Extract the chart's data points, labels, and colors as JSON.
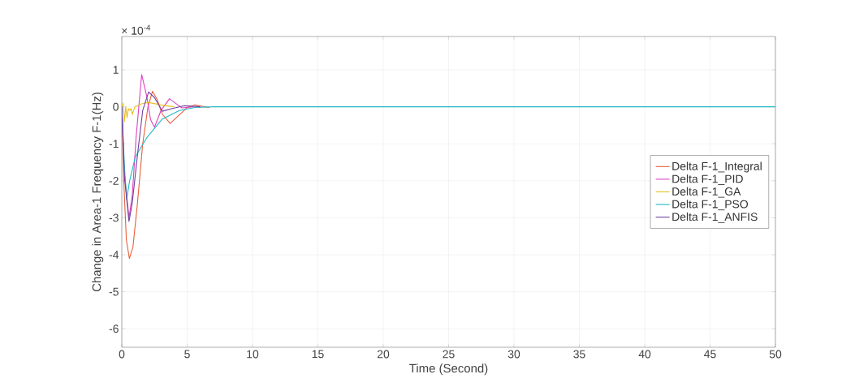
{
  "chart_data": {
    "type": "line",
    "xlabel": "Time (Second)",
    "ylabel": "Change in Area-1 Frequency F-1(Hz)",
    "annotations": [
      "× 10$^{-4}$"
    ],
    "xlim": [
      0,
      50
    ],
    "ylim": [
      -6.5,
      1.9
    ],
    "xticks": [
      0,
      5,
      10,
      15,
      20,
      25,
      30,
      35,
      40,
      45,
      50
    ],
    "yticks": [
      -6,
      -5,
      -4,
      -3,
      -2,
      -1,
      0,
      1
    ],
    "grid": true,
    "legend": "right",
    "marker": "none",
    "line_style": "solid",
    "series": [
      {
        "name": "Delta F-1_Integral",
        "color": "#e8603c",
        "x": [
          0,
          0.15,
          0.35,
          0.58,
          0.85,
          1.2,
          1.6,
          2.0,
          2.35,
          2.7,
          3.1,
          3.7,
          4.3,
          5.0,
          5.6,
          6.7
        ],
        "values": [
          0,
          -2.0,
          -3.6,
          -4.1,
          -3.8,
          -2.6,
          -1.0,
          0,
          0.42,
          0.2,
          -0.2,
          -0.45,
          -0.25,
          -0.02,
          0.05,
          -0.02
        ]
      },
      {
        "name": "Delta F-1_PID",
        "color": "#e040c0",
        "x": [
          0,
          0.2,
          0.55,
          0.8,
          1.1,
          1.52,
          1.9,
          2.2,
          2.5,
          3.0,
          3.65,
          4.1,
          4.6,
          5.5
        ],
        "values": [
          0,
          -1.8,
          -3.0,
          -2.4,
          -0.8,
          0.87,
          0.3,
          -0.35,
          -0.55,
          -0.1,
          0.22,
          0.1,
          -0.03,
          0
        ]
      },
      {
        "name": "Delta F-1_GA",
        "color": "#e8c020",
        "x": [
          0,
          0.1,
          0.2,
          0.3,
          0.4,
          0.5,
          0.6,
          0.7,
          0.8,
          1.0,
          1.5,
          2.0,
          3.0,
          4.0
        ],
        "values": [
          0,
          0.1,
          -0.4,
          0,
          -0.3,
          -0.05,
          -0.1,
          -0.05,
          -0.2,
          0,
          0.08,
          0.12,
          0.05,
          0
        ]
      },
      {
        "name": "Delta F-1_PSO",
        "color": "#20b8c8",
        "x": [
          0,
          0.2,
          0.37,
          0.6,
          1.04,
          1.9,
          3.1,
          4.4,
          5.6,
          7,
          50
        ],
        "values": [
          0,
          -1.6,
          -2.5,
          -2.0,
          -1.35,
          -0.84,
          -0.33,
          -0.1,
          -0.02,
          0,
          0
        ]
      },
      {
        "name": "Delta F-1_ANFIS",
        "color": "#7040a0",
        "x": [
          0,
          0.2,
          0.55,
          0.8,
          1.2,
          1.6,
          2.05,
          2.5,
          3.1,
          3.8,
          4.8,
          6
        ],
        "values": [
          0,
          -1.9,
          -3.1,
          -2.6,
          -1.3,
          -0.1,
          0.4,
          0.25,
          -0.12,
          -0.05,
          0.03,
          0
        ]
      }
    ]
  }
}
